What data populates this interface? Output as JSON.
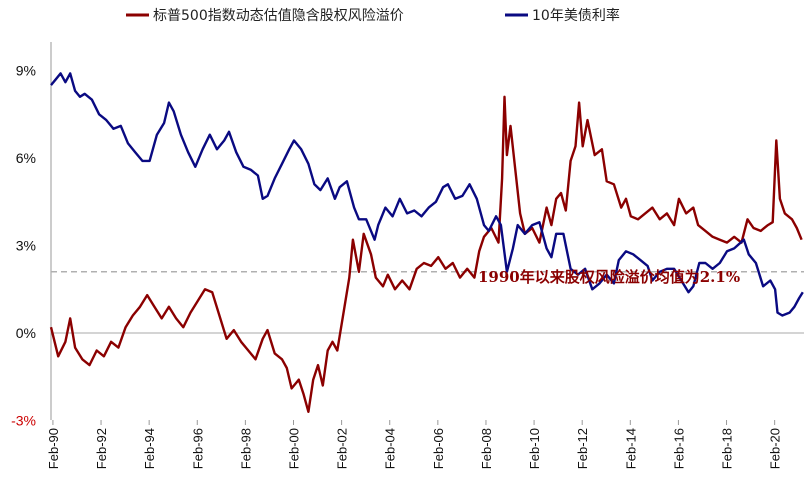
{
  "chart_data": {
    "type": "line",
    "title": "",
    "xlabel": "",
    "ylabel": "",
    "ylim": [
      -3,
      10
    ],
    "xlim": [
      1990.0,
      2021.3
    ],
    "yticks": [
      {
        "value": 9,
        "label": "9%"
      },
      {
        "value": 6,
        "label": "6%"
      },
      {
        "value": 3,
        "label": "3%"
      },
      {
        "value": 0,
        "label": "0%"
      },
      {
        "value": -3,
        "label": "-3%"
      }
    ],
    "xticks": [
      {
        "value": 1990.08,
        "label": "Feb-90"
      },
      {
        "value": 1992.08,
        "label": "Feb-92"
      },
      {
        "value": 1994.08,
        "label": "Feb-94"
      },
      {
        "value": 1996.08,
        "label": "Feb-96"
      },
      {
        "value": 1998.08,
        "label": "Feb-98"
      },
      {
        "value": 2000.08,
        "label": "Feb-00"
      },
      {
        "value": 2002.08,
        "label": "Feb-02"
      },
      {
        "value": 2004.08,
        "label": "Feb-04"
      },
      {
        "value": 2006.08,
        "label": "Feb-06"
      },
      {
        "value": 2008.08,
        "label": "Feb-08"
      },
      {
        "value": 2010.08,
        "label": "Feb-10"
      },
      {
        "value": 2012.08,
        "label": "Feb-12"
      },
      {
        "value": 2014.08,
        "label": "Feb-14"
      },
      {
        "value": 2016.08,
        "label": "Feb-16"
      },
      {
        "value": 2018.08,
        "label": "Feb-18"
      },
      {
        "value": 2020.08,
        "label": "Feb-20"
      }
    ],
    "legend_position": "top",
    "grid": false,
    "series": [
      {
        "name": "标普500指数动态估值隐含股权风险溢价",
        "color": "#8b0000",
        "points": [
          [
            1990.0,
            0.2
          ],
          [
            1990.3,
            -0.8
          ],
          [
            1990.6,
            -0.3
          ],
          [
            1990.8,
            0.5
          ],
          [
            1991.0,
            -0.5
          ],
          [
            1991.3,
            -0.9
          ],
          [
            1991.6,
            -1.1
          ],
          [
            1991.9,
            -0.6
          ],
          [
            1992.2,
            -0.8
          ],
          [
            1992.5,
            -0.3
          ],
          [
            1992.8,
            -0.5
          ],
          [
            1993.1,
            0.2
          ],
          [
            1993.4,
            0.6
          ],
          [
            1993.7,
            0.9
          ],
          [
            1994.0,
            1.3
          ],
          [
            1994.3,
            0.9
          ],
          [
            1994.6,
            0.5
          ],
          [
            1994.9,
            0.9
          ],
          [
            1995.2,
            0.5
          ],
          [
            1995.5,
            0.2
          ],
          [
            1995.8,
            0.7
          ],
          [
            1996.1,
            1.1
          ],
          [
            1996.4,
            1.5
          ],
          [
            1996.7,
            1.4
          ],
          [
            1997.0,
            0.6
          ],
          [
            1997.3,
            -0.2
          ],
          [
            1997.6,
            0.1
          ],
          [
            1997.9,
            -0.3
          ],
          [
            1998.2,
            -0.6
          ],
          [
            1998.5,
            -0.9
          ],
          [
            1998.8,
            -0.2
          ],
          [
            1999.0,
            0.1
          ],
          [
            1999.3,
            -0.7
          ],
          [
            1999.6,
            -0.9
          ],
          [
            1999.8,
            -1.2
          ],
          [
            2000.0,
            -1.9
          ],
          [
            2000.3,
            -1.6
          ],
          [
            2000.5,
            -2.1
          ],
          [
            2000.7,
            -2.7
          ],
          [
            2000.9,
            -1.6
          ],
          [
            2001.1,
            -1.1
          ],
          [
            2001.3,
            -1.8
          ],
          [
            2001.5,
            -0.6
          ],
          [
            2001.7,
            -0.3
          ],
          [
            2001.9,
            -0.6
          ],
          [
            2002.0,
            -0.1
          ],
          [
            2002.2,
            0.9
          ],
          [
            2002.4,
            1.9
          ],
          [
            2002.55,
            3.2
          ],
          [
            2002.8,
            2.1
          ],
          [
            2003.0,
            3.4
          ],
          [
            2003.3,
            2.7
          ],
          [
            2003.5,
            1.9
          ],
          [
            2003.8,
            1.6
          ],
          [
            2004.0,
            2.0
          ],
          [
            2004.3,
            1.5
          ],
          [
            2004.6,
            1.8
          ],
          [
            2004.9,
            1.5
          ],
          [
            2005.2,
            2.2
          ],
          [
            2005.5,
            2.4
          ],
          [
            2005.8,
            2.3
          ],
          [
            2006.1,
            2.6
          ],
          [
            2006.4,
            2.2
          ],
          [
            2006.7,
            2.4
          ],
          [
            2007.0,
            1.9
          ],
          [
            2007.3,
            2.2
          ],
          [
            2007.6,
            1.9
          ],
          [
            2007.8,
            2.8
          ],
          [
            2008.0,
            3.3
          ],
          [
            2008.3,
            3.6
          ],
          [
            2008.6,
            3.1
          ],
          [
            2008.75,
            5.3
          ],
          [
            2008.85,
            8.1
          ],
          [
            2008.95,
            6.1
          ],
          [
            2009.1,
            7.1
          ],
          [
            2009.3,
            5.6
          ],
          [
            2009.5,
            4.1
          ],
          [
            2009.7,
            3.4
          ],
          [
            2010.0,
            3.6
          ],
          [
            2010.3,
            3.1
          ],
          [
            2010.6,
            4.3
          ],
          [
            2010.8,
            3.7
          ],
          [
            2011.0,
            4.6
          ],
          [
            2011.2,
            4.8
          ],
          [
            2011.4,
            4.2
          ],
          [
            2011.6,
            5.9
          ],
          [
            2011.8,
            6.4
          ],
          [
            2011.95,
            7.9
          ],
          [
            2012.1,
            6.4
          ],
          [
            2012.3,
            7.3
          ],
          [
            2012.6,
            6.1
          ],
          [
            2012.9,
            6.3
          ],
          [
            2013.1,
            5.2
          ],
          [
            2013.4,
            5.1
          ],
          [
            2013.7,
            4.3
          ],
          [
            2013.9,
            4.6
          ],
          [
            2014.1,
            4.0
          ],
          [
            2014.4,
            3.9
          ],
          [
            2014.7,
            4.1
          ],
          [
            2015.0,
            4.3
          ],
          [
            2015.3,
            3.9
          ],
          [
            2015.6,
            4.1
          ],
          [
            2015.9,
            3.7
          ],
          [
            2016.1,
            4.6
          ],
          [
            2016.4,
            4.1
          ],
          [
            2016.7,
            4.3
          ],
          [
            2016.9,
            3.7
          ],
          [
            2017.2,
            3.5
          ],
          [
            2017.5,
            3.3
          ],
          [
            2017.8,
            3.2
          ],
          [
            2018.1,
            3.1
          ],
          [
            2018.4,
            3.3
          ],
          [
            2018.7,
            3.1
          ],
          [
            2018.95,
            3.9
          ],
          [
            2019.2,
            3.6
          ],
          [
            2019.5,
            3.5
          ],
          [
            2019.8,
            3.7
          ],
          [
            2020.0,
            3.8
          ],
          [
            2020.15,
            6.6
          ],
          [
            2020.3,
            4.6
          ],
          [
            2020.5,
            4.1
          ],
          [
            2020.8,
            3.9
          ],
          [
            2021.0,
            3.6
          ],
          [
            2021.2,
            3.2
          ]
        ]
      },
      {
        "name": "10年美债利率",
        "color": "#0a0a82",
        "points": [
          [
            1990.0,
            8.5
          ],
          [
            1990.2,
            8.7
          ],
          [
            1990.4,
            8.9
          ],
          [
            1990.6,
            8.6
          ],
          [
            1990.8,
            8.9
          ],
          [
            1991.0,
            8.3
          ],
          [
            1991.2,
            8.1
          ],
          [
            1991.4,
            8.2
          ],
          [
            1991.7,
            8.0
          ],
          [
            1992.0,
            7.5
          ],
          [
            1992.3,
            7.3
          ],
          [
            1992.6,
            7.0
          ],
          [
            1992.9,
            7.1
          ],
          [
            1993.2,
            6.5
          ],
          [
            1993.5,
            6.2
          ],
          [
            1993.8,
            5.9
          ],
          [
            1994.1,
            5.9
          ],
          [
            1994.4,
            6.8
          ],
          [
            1994.7,
            7.2
          ],
          [
            1994.9,
            7.9
          ],
          [
            1995.1,
            7.6
          ],
          [
            1995.4,
            6.8
          ],
          [
            1995.7,
            6.2
          ],
          [
            1996.0,
            5.7
          ],
          [
            1996.3,
            6.3
          ],
          [
            1996.6,
            6.8
          ],
          [
            1996.9,
            6.3
          ],
          [
            1997.2,
            6.6
          ],
          [
            1997.4,
            6.9
          ],
          [
            1997.7,
            6.2
          ],
          [
            1998.0,
            5.7
          ],
          [
            1998.3,
            5.6
          ],
          [
            1998.6,
            5.4
          ],
          [
            1998.8,
            4.6
          ],
          [
            1999.0,
            4.7
          ],
          [
            1999.3,
            5.3
          ],
          [
            1999.6,
            5.8
          ],
          [
            1999.9,
            6.3
          ],
          [
            2000.1,
            6.6
          ],
          [
            2000.4,
            6.3
          ],
          [
            2000.7,
            5.8
          ],
          [
            2000.95,
            5.1
          ],
          [
            2001.2,
            4.9
          ],
          [
            2001.5,
            5.3
          ],
          [
            2001.8,
            4.6
          ],
          [
            2002.0,
            5.0
          ],
          [
            2002.3,
            5.2
          ],
          [
            2002.6,
            4.3
          ],
          [
            2002.8,
            3.9
          ],
          [
            2003.1,
            3.9
          ],
          [
            2003.45,
            3.2
          ],
          [
            2003.6,
            3.7
          ],
          [
            2003.9,
            4.3
          ],
          [
            2004.2,
            4.0
          ],
          [
            2004.5,
            4.6
          ],
          [
            2004.8,
            4.1
          ],
          [
            2005.1,
            4.2
          ],
          [
            2005.4,
            4.0
          ],
          [
            2005.7,
            4.3
          ],
          [
            2006.0,
            4.5
          ],
          [
            2006.3,
            5.0
          ],
          [
            2006.5,
            5.1
          ],
          [
            2006.8,
            4.6
          ],
          [
            2007.1,
            4.7
          ],
          [
            2007.4,
            5.1
          ],
          [
            2007.7,
            4.6
          ],
          [
            2008.0,
            3.7
          ],
          [
            2008.2,
            3.5
          ],
          [
            2008.5,
            4.0
          ],
          [
            2008.7,
            3.7
          ],
          [
            2008.95,
            2.1
          ],
          [
            2009.2,
            2.9
          ],
          [
            2009.4,
            3.7
          ],
          [
            2009.7,
            3.4
          ],
          [
            2010.0,
            3.7
          ],
          [
            2010.3,
            3.8
          ],
          [
            2010.6,
            2.9
          ],
          [
            2010.8,
            2.6
          ],
          [
            2011.0,
            3.4
          ],
          [
            2011.3,
            3.4
          ],
          [
            2011.6,
            2.2
          ],
          [
            2011.9,
            2.0
          ],
          [
            2012.2,
            2.2
          ],
          [
            2012.5,
            1.5
          ],
          [
            2012.8,
            1.7
          ],
          [
            2013.1,
            2.0
          ],
          [
            2013.4,
            1.7
          ],
          [
            2013.6,
            2.5
          ],
          [
            2013.9,
            2.8
          ],
          [
            2014.2,
            2.7
          ],
          [
            2014.5,
            2.5
          ],
          [
            2014.8,
            2.3
          ],
          [
            2015.0,
            1.8
          ],
          [
            2015.3,
            2.1
          ],
          [
            2015.6,
            2.2
          ],
          [
            2015.9,
            2.2
          ],
          [
            2016.2,
            1.8
          ],
          [
            2016.5,
            1.4
          ],
          [
            2016.7,
            1.6
          ],
          [
            2016.95,
            2.4
          ],
          [
            2017.2,
            2.4
          ],
          [
            2017.5,
            2.2
          ],
          [
            2017.8,
            2.4
          ],
          [
            2018.1,
            2.8
          ],
          [
            2018.4,
            2.9
          ],
          [
            2018.8,
            3.2
          ],
          [
            2019.0,
            2.7
          ],
          [
            2019.3,
            2.4
          ],
          [
            2019.6,
            1.6
          ],
          [
            2019.9,
            1.8
          ],
          [
            2020.1,
            1.5
          ],
          [
            2020.2,
            0.7
          ],
          [
            2020.4,
            0.6
          ],
          [
            2020.7,
            0.7
          ],
          [
            2020.9,
            0.9
          ],
          [
            2021.1,
            1.2
          ],
          [
            2021.25,
            1.4
          ]
        ]
      }
    ],
    "reference_line": {
      "value": 2.1,
      "color": "#b0b0b0",
      "label": "1990年以来股权风险溢价均值为2.1%"
    }
  }
}
